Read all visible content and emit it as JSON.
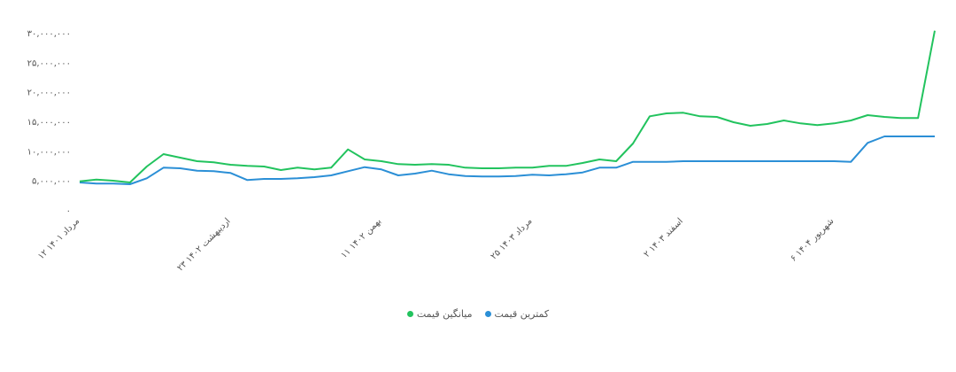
{
  "chart_data": {
    "type": "line",
    "categories": [
      "۱۲ مرداد ۱۴۰۱",
      null,
      null,
      null,
      null,
      null,
      null,
      null,
      null,
      "۲۳ اردیبهشت ۱۴۰۲",
      null,
      null,
      null,
      null,
      null,
      null,
      null,
      null,
      "۱۱ بهمن ۱۴۰۲",
      null,
      null,
      null,
      null,
      null,
      null,
      null,
      null,
      "۲۵ مرداد ۱۴۰۳",
      null,
      null,
      null,
      null,
      null,
      null,
      null,
      null,
      "۲ اسفند ۱۴۰۳",
      null,
      null,
      null,
      null,
      null,
      null,
      null,
      null,
      "۶ شهریور ۱۴۰۴",
      null,
      null,
      null,
      null,
      null,
      null
    ],
    "series": [
      {
        "name": "کمترین قیمت",
        "color": "#2b8fd6",
        "values": [
          4800000,
          4600000,
          4600000,
          4500000,
          5500000,
          7300000,
          7200000,
          6800000,
          6700000,
          6400000,
          5200000,
          5400000,
          5400000,
          5500000,
          5700000,
          6000000,
          6700000,
          7400000,
          7000000,
          6000000,
          6300000,
          6800000,
          6200000,
          5900000,
          5800000,
          5800000,
          5900000,
          6100000,
          6000000,
          6200000,
          6500000,
          7300000,
          7300000,
          8300000,
          8300000,
          8300000,
          8400000,
          8400000,
          8400000,
          8400000,
          8400000,
          8400000,
          8400000,
          8400000,
          8400000,
          8400000,
          8300000,
          11500000,
          12600000,
          12600000,
          12600000,
          12600000
        ]
      },
      {
        "name": "میانگین قیمت",
        "color": "#22c35e",
        "values": [
          5000000,
          5300000,
          5100000,
          4800000,
          7500000,
          9600000,
          9000000,
          8400000,
          8200000,
          7800000,
          7600000,
          7500000,
          6900000,
          7300000,
          7000000,
          7300000,
          10400000,
          8700000,
          8400000,
          7900000,
          7800000,
          7900000,
          7800000,
          7300000,
          7200000,
          7200000,
          7300000,
          7300000,
          7600000,
          7600000,
          8100000,
          8700000,
          8400000,
          11400000,
          16000000,
          16500000,
          16600000,
          16000000,
          15900000,
          15000000,
          14400000,
          14700000,
          15300000,
          14800000,
          14500000,
          14800000,
          15300000,
          16200000,
          15900000,
          15700000,
          15700000,
          30500000
        ]
      }
    ],
    "ylim": [
      0,
      30000000
    ],
    "yticks": [
      {
        "value": 0,
        "label": "۰"
      },
      {
        "value": 5000000,
        "label": "۵,۰۰۰,۰۰۰"
      },
      {
        "value": 10000000,
        "label": "۱۰,۰۰۰,۰۰۰"
      },
      {
        "value": 15000000,
        "label": "۱۵,۰۰۰,۰۰۰"
      },
      {
        "value": 20000000,
        "label": "۲۰,۰۰۰,۰۰۰"
      },
      {
        "value": 25000000,
        "label": "۲۵,۰۰۰,۰۰۰"
      },
      {
        "value": 30000000,
        "label": "۳۰,۰۰۰,۰۰۰"
      }
    ],
    "grid": false
  }
}
